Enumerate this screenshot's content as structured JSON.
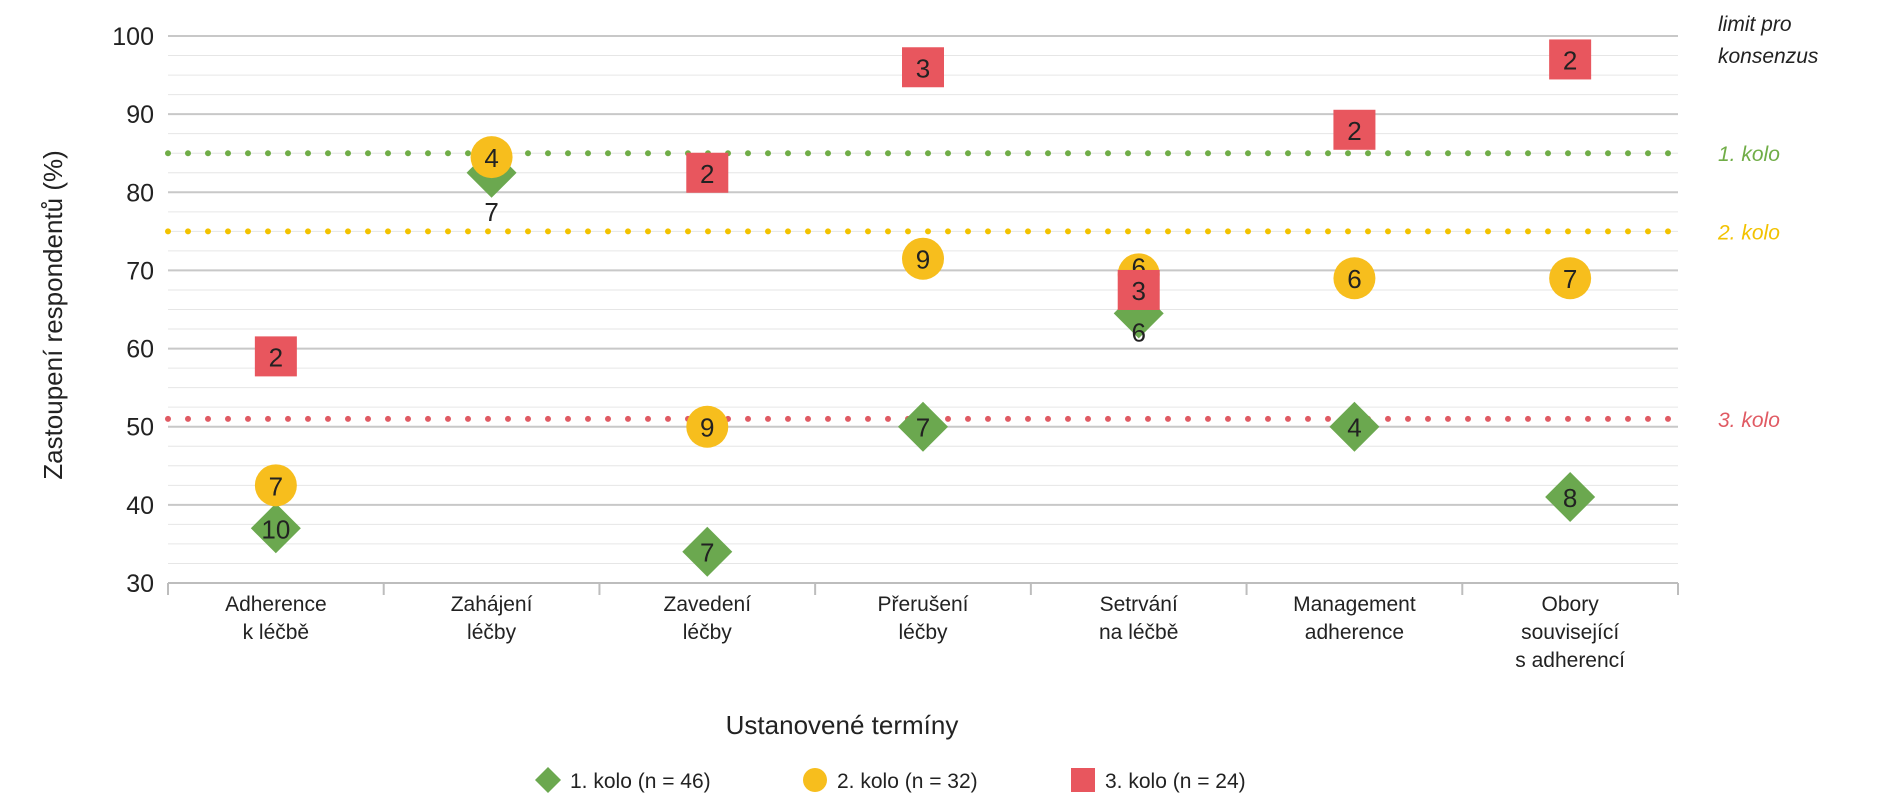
{
  "chart_data": {
    "type": "scatter",
    "title": "",
    "xlabel": "Ustanovené termíny",
    "ylabel": "Zastoupení respondentů (%)",
    "ylim": [
      30,
      100
    ],
    "yticks": [
      30,
      40,
      50,
      60,
      70,
      80,
      90,
      100
    ],
    "grid": true,
    "categories": [
      [
        "Adherence",
        "k léčbě"
      ],
      [
        "Zahájení",
        "léčby"
      ],
      [
        "Zavedení",
        "léčby"
      ],
      [
        "Přerušení",
        "léčby"
      ],
      [
        "Setrvání",
        "na léčbě"
      ],
      [
        "Management",
        "adherence"
      ],
      [
        "Obory",
        "související",
        "s adherencí"
      ]
    ],
    "limit_header": [
      "limit pro",
      "konsenzus"
    ],
    "thresholds": [
      {
        "label": "1. kolo",
        "value": 85,
        "color": "#70AD47"
      },
      {
        "label": "2. kolo",
        "value": 75,
        "color": "#F2C200"
      },
      {
        "label": "3. kolo",
        "value": 51,
        "color": "#E05A63"
      }
    ],
    "series": [
      {
        "name": "1. kolo (n = 46)",
        "marker": "diamond",
        "color": "#6BA84F",
        "points": [
          {
            "cat": 0,
            "y": 37,
            "label": "10"
          },
          {
            "cat": 1,
            "y": 82.5,
            "label": "7"
          },
          {
            "cat": 2,
            "y": 34,
            "label": "7"
          },
          {
            "cat": 3,
            "y": 50,
            "label": "7"
          },
          {
            "cat": 4,
            "y": 64.5,
            "label": "6"
          },
          {
            "cat": 5,
            "y": 50,
            "label": "4"
          },
          {
            "cat": 6,
            "y": 41,
            "label": "8"
          }
        ]
      },
      {
        "name": "2. kolo (n = 32)",
        "marker": "circle",
        "color": "#F7BE1D",
        "points": [
          {
            "cat": 0,
            "y": 42.5,
            "label": "7"
          },
          {
            "cat": 1,
            "y": 84.5,
            "label": "4"
          },
          {
            "cat": 2,
            "y": 50,
            "label": "9"
          },
          {
            "cat": 3,
            "y": 71.5,
            "label": "9"
          },
          {
            "cat": 4,
            "y": 69.5,
            "label": "6"
          },
          {
            "cat": 5,
            "y": 69,
            "label": "6"
          },
          {
            "cat": 6,
            "y": 69,
            "label": "7"
          }
        ]
      },
      {
        "name": "3. kolo (n = 24)",
        "marker": "square",
        "color": "#E8565E",
        "points": [
          {
            "cat": 0,
            "y": 59,
            "label": "2"
          },
          {
            "cat": 2,
            "y": 82.5,
            "label": "2"
          },
          {
            "cat": 3,
            "y": 96,
            "label": "3"
          },
          {
            "cat": 4,
            "y": 67.5,
            "label": "3"
          },
          {
            "cat": 5,
            "y": 88,
            "label": "2"
          },
          {
            "cat": 6,
            "y": 97,
            "label": "2"
          }
        ]
      }
    ],
    "legend_position": "bottom"
  }
}
